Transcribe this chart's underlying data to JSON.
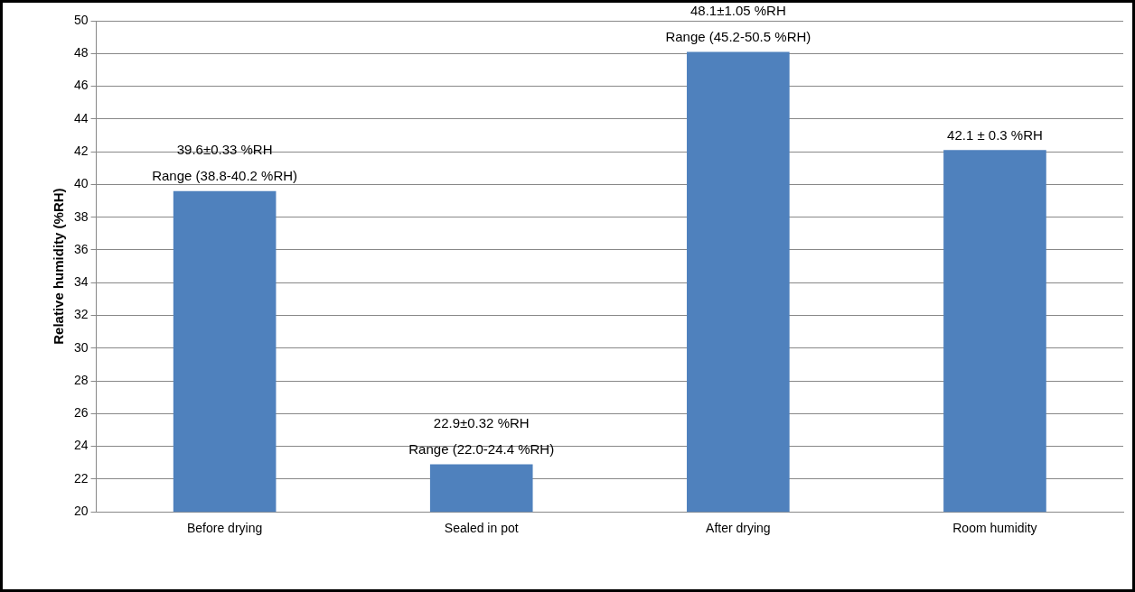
{
  "chart_data": {
    "type": "bar",
    "ylabel": "Relative humidity (%RH)",
    "categories": [
      "Before drying",
      "Sealed in pot",
      "After drying",
      "Room humidity"
    ],
    "values": [
      39.6,
      22.9,
      48.1,
      42.1
    ],
    "color": "#4f81bd",
    "value_labels": [
      "39.6±0.33 %RH\nRange (38.8-40.2 %RH)",
      "22.9±0.32 %RH\nRange (22.0-24.4 %RH)",
      "48.1±1.05 %RH\nRange (45.2-50.5 %RH)",
      "42.1 ± 0.3 %RH"
    ],
    "ylim": [
      20,
      50
    ],
    "yticks": [
      20,
      22,
      24,
      26,
      28,
      30,
      32,
      34,
      36,
      38,
      40,
      42,
      44,
      46,
      48,
      50
    ],
    "grid": "y",
    "legend": false
  }
}
